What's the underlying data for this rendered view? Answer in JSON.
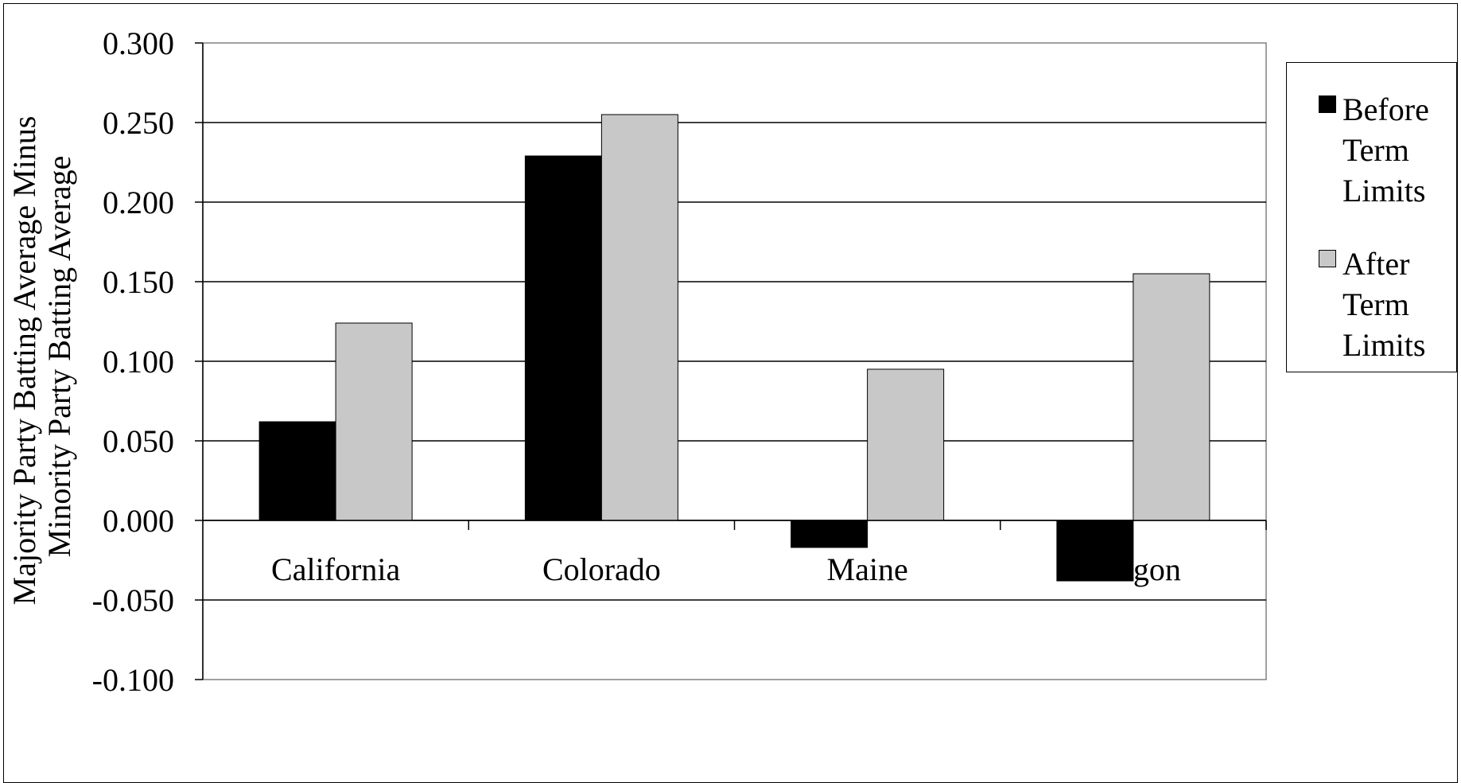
{
  "chart_data": {
    "type": "bar",
    "title": "",
    "xlabel": "",
    "ylabel_lines": [
      "Majority Party Batting Average Minus",
      "Minority Party Batting Average"
    ],
    "categories": [
      "California",
      "Colorado",
      "Maine",
      "Oregon"
    ],
    "series": [
      {
        "name": "Before Term Limits",
        "color": "#000000",
        "values": [
          0.062,
          0.229,
          -0.017,
          -0.038
        ]
      },
      {
        "name": "After Term Limits",
        "color": "#c8c8c8",
        "values": [
          0.124,
          0.255,
          0.095,
          0.155
        ]
      }
    ],
    "ylim": [
      -0.1,
      0.3
    ],
    "yticks": [
      "-0.100",
      "-0.050",
      "0.000",
      "0.050",
      "0.100",
      "0.150",
      "0.200",
      "0.250",
      "0.300"
    ],
    "ytick_values": [
      -0.1,
      -0.05,
      0,
      0.05,
      0.1,
      0.15,
      0.2,
      0.25,
      0.3
    ],
    "grid": true,
    "legend_position": "right"
  }
}
